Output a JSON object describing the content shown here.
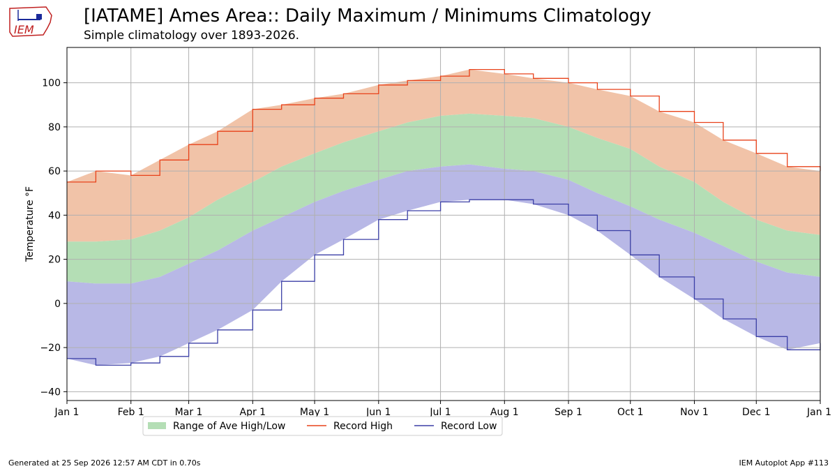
{
  "header": {
    "title": "[IATAME] Ames Area:: Daily Maximum / Minimums Climatology",
    "subtitle": "Simple climatology over 1893-2026.",
    "logo_text": "IEM"
  },
  "footer": {
    "generated": "Generated at 25 Sep 2026 12:57 AM CDT in 0.70s",
    "app": "IEM Autoplot App #113"
  },
  "colors": {
    "record_high": "#e8421a",
    "record_low": "#3b3fa6",
    "upper_band": "#f1c3a8",
    "ave_band": "#b4deb5",
    "lower_band": "#b8b8e6",
    "grid": "#b0b0b0"
  },
  "chart_data": {
    "type": "area",
    "title": "[IATAME] Ames Area:: Daily Maximum / Minimums Climatology",
    "subtitle": "Simple climatology over 1893-2026.",
    "ylabel": "Temperature °F",
    "xlabel": "",
    "ylim": [
      -44,
      116
    ],
    "xlim": [
      1,
      366
    ],
    "grid": true,
    "legend_position": "bottom-center",
    "x_ticks": [
      {
        "label": "Jan 1",
        "day": 1
      },
      {
        "label": "Feb 1",
        "day": 32
      },
      {
        "label": "Mar 1",
        "day": 60
      },
      {
        "label": "Apr 1",
        "day": 91
      },
      {
        "label": "May 1",
        "day": 121
      },
      {
        "label": "Jun 1",
        "day": 152
      },
      {
        "label": "Jul 1",
        "day": 182
      },
      {
        "label": "Aug 1",
        "day": 213
      },
      {
        "label": "Sep 1",
        "day": 244
      },
      {
        "label": "Oct 1",
        "day": 274
      },
      {
        "label": "Nov 1",
        "day": 305
      },
      {
        "label": "Dec 1",
        "day": 335
      },
      {
        "label": "Jan 1",
        "day": 366
      }
    ],
    "y_ticks": [
      -40,
      -20,
      0,
      20,
      40,
      60,
      80,
      100
    ],
    "legend": [
      "Range of Ave High/Low",
      "Record High",
      "Record Low"
    ],
    "series_days": [
      1,
      15,
      32,
      46,
      60,
      74,
      91,
      105,
      121,
      135,
      152,
      166,
      182,
      196,
      213,
      227,
      244,
      258,
      274,
      288,
      305,
      319,
      335,
      350,
      366
    ],
    "series": [
      {
        "name": "Record High",
        "values": [
          55,
          60,
          58,
          65,
          72,
          78,
          88,
          90,
          93,
          95,
          99,
          101,
          103,
          106,
          104,
          102,
          100,
          97,
          94,
          87,
          82,
          74,
          68,
          62,
          60
        ]
      },
      {
        "name": "Ave High",
        "values": [
          28,
          28,
          29,
          33,
          39,
          47,
          55,
          62,
          68,
          73,
          78,
          82,
          85,
          86,
          85,
          84,
          80,
          75,
          70,
          62,
          55,
          46,
          38,
          33,
          31
        ]
      },
      {
        "name": "Ave Low",
        "values": [
          10,
          9,
          9,
          12,
          18,
          24,
          33,
          39,
          46,
          51,
          56,
          60,
          62,
          63,
          61,
          60,
          56,
          50,
          44,
          38,
          32,
          26,
          19,
          14,
          12
        ]
      },
      {
        "name": "Record Low",
        "values": [
          -25,
          -28,
          -27,
          -24,
          -18,
          -12,
          -3,
          10,
          22,
          29,
          38,
          42,
          46,
          47,
          47,
          45,
          40,
          33,
          22,
          12,
          2,
          -7,
          -15,
          -21,
          -18
        ]
      }
    ]
  }
}
